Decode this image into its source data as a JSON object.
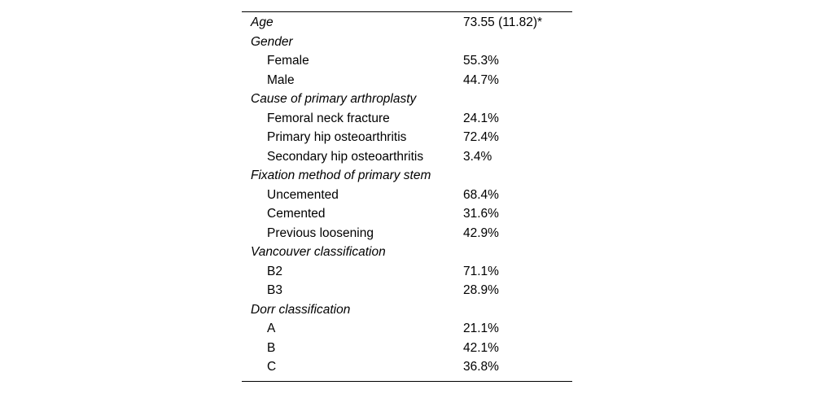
{
  "table": {
    "footnote_marker": "*",
    "rows": [
      {
        "label": "Age",
        "value": "73.55 (11.82)*"
      },
      {
        "label": "Gender",
        "value": ""
      },
      {
        "label": "Female",
        "value": "55.3%"
      },
      {
        "label": "Male",
        "value": "44.7%"
      },
      {
        "label": "Cause of primary arthroplasty",
        "value": ""
      },
      {
        "label": "Femoral neck fracture",
        "value": "24.1%"
      },
      {
        "label": "Primary hip osteoarthritis",
        "value": "72.4%"
      },
      {
        "label": "Secondary hip osteoarthritis",
        "value": "3.4%"
      },
      {
        "label": "Fixation method of primary stem",
        "value": ""
      },
      {
        "label": "Uncemented",
        "value": "68.4%"
      },
      {
        "label": "Cemented",
        "value": "31.6%"
      },
      {
        "label": "Previous loosening",
        "value": "42.9%"
      },
      {
        "label": "Vancouver classification",
        "value": ""
      },
      {
        "label": "B2",
        "value": "71.1%"
      },
      {
        "label": "B3",
        "value": "28.9%"
      },
      {
        "label": "Dorr classification",
        "value": ""
      },
      {
        "label": "A",
        "value": "21.1%"
      },
      {
        "label": "B",
        "value": "42.1%"
      },
      {
        "label": "C",
        "value": "36.8%"
      }
    ],
    "colors": {
      "text": "#000000",
      "rule": "#000000",
      "background": "#ffffff"
    }
  }
}
